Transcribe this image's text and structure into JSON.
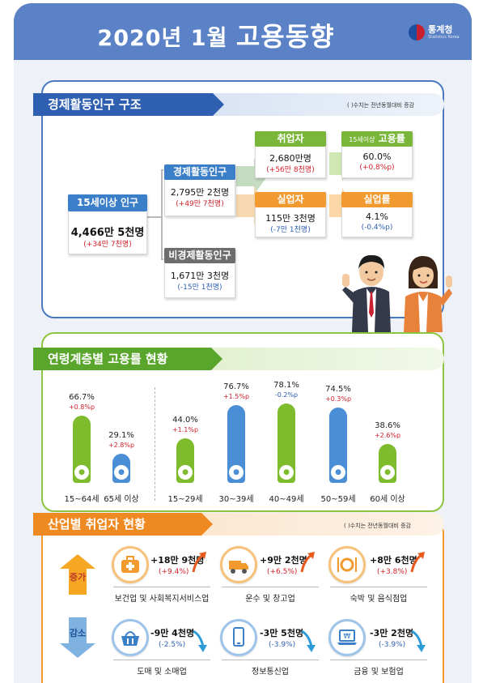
{
  "header": {
    "title_prefix": "2020년  1월",
    "title_main": "고용동향",
    "logo_text": "통계청",
    "logo_sub": "Statistics Korea"
  },
  "structure": {
    "heading": "경제활동인구 구조",
    "note": "(  )수치는 전년동월대비 증감",
    "pop15": {
      "label": "15세이상 인구",
      "value": "4,466만 5천명",
      "change": "(+34만 7천명)"
    },
    "active": {
      "label": "경제활동인구",
      "value": "2,795만 2천명",
      "change": "(+49만 7천명)"
    },
    "inactive": {
      "label": "비경제활동인구",
      "value": "1,671만 3천명",
      "change": "(-15만 1천명)"
    },
    "employed": {
      "label": "취업자",
      "value": "2,680만명",
      "change": "(+56만 8천명)"
    },
    "unemployed": {
      "label": "실업자",
      "value": "115만 3천명",
      "change": "(-7만 1천명)"
    },
    "emp_rate": {
      "label_prefix": "15세이상",
      "label_main": "고용률",
      "value": "60.0%",
      "change": "(+0.8%p)"
    },
    "unemp_rate": {
      "label": "실업률",
      "value": "4.1%",
      "change": "(-0.4%p)"
    }
  },
  "age": {
    "heading": "연령계층별 고용률 현황",
    "colors": {
      "green": "#7ebc2e",
      "blue": "#4a8fd6"
    },
    "bars": [
      {
        "cat": "15~64세",
        "value": 66.7,
        "value_label": "66.7%",
        "change": "+0.8%p",
        "color": "green"
      },
      {
        "cat": "65세 이상",
        "value": 29.1,
        "value_label": "29.1%",
        "change": "+2.8%p",
        "color": "blue"
      },
      {
        "cat": "15~29세",
        "value": 44.0,
        "value_label": "44.0%",
        "change": "+1.1%p",
        "color": "green"
      },
      {
        "cat": "30~39세",
        "value": 76.7,
        "value_label": "76.7%",
        "change": "+1.5%p",
        "color": "blue"
      },
      {
        "cat": "40~49세",
        "value": 78.1,
        "value_label": "78.1%",
        "change": "-0.2%p",
        "color": "green"
      },
      {
        "cat": "50~59세",
        "value": 74.5,
        "value_label": "74.5%",
        "change": "+0.3%p",
        "color": "blue"
      },
      {
        "cat": "60세 이상",
        "value": 38.6,
        "value_label": "38.6%",
        "change": "+2.6%p",
        "color": "green"
      }
    ]
  },
  "industry": {
    "heading": "산업별 취업자 현황",
    "note": "(  )수치는 전년동월대비 증감",
    "increase_label": "증가",
    "decrease_label": "감소",
    "increase": [
      {
        "name": "보건업 및 사회복지서비스업",
        "value": "+18만 9천명",
        "change": "(+9.4%)",
        "icon": "medical-kit-icon"
      },
      {
        "name": "운수 및 창고업",
        "value": "+9만 2천명",
        "change": "(+6.5%)",
        "icon": "truck-icon"
      },
      {
        "name": "숙박 및 음식점업",
        "value": "+8만 6천명",
        "change": "(+3.8%)",
        "icon": "dining-icon"
      }
    ],
    "decrease": [
      {
        "name": "도매 및 소매업",
        "value": "-9만 4천명",
        "change": "(-2.5%)",
        "icon": "shopping-basket-icon"
      },
      {
        "name": "정보통신업",
        "value": "-3만 5천명",
        "change": "(-3.9%)",
        "icon": "smartphone-icon"
      },
      {
        "name": "금융 및 보험업",
        "value": "-3만 2천명",
        "change": "(-3.9%)",
        "icon": "laptop-won-icon"
      }
    ]
  }
}
